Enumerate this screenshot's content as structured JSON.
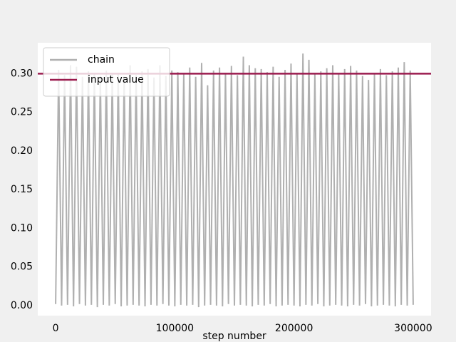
{
  "chart_data": {
    "type": "line",
    "x_label": "step number",
    "x": [
      0,
      2500,
      5000,
      7500,
      10000,
      12500,
      15000,
      17500,
      20000,
      22500,
      25000,
      27500,
      30000,
      32500,
      35000,
      37500,
      40000,
      42500,
      45000,
      47500,
      50000,
      52500,
      55000,
      57500,
      60000,
      62500,
      65000,
      67500,
      70000,
      72500,
      75000,
      77500,
      80000,
      82500,
      85000,
      87500,
      90000,
      92500,
      95000,
      97500,
      100000,
      102500,
      105000,
      107500,
      110000,
      112500,
      115000,
      117500,
      120000,
      122500,
      125000,
      127500,
      130000,
      132500,
      135000,
      137500,
      140000,
      142500,
      145000,
      147500,
      150000,
      152500,
      155000,
      157500,
      160000,
      162500,
      165000,
      167500,
      170000,
      172500,
      175000,
      177500,
      180000,
      182500,
      185000,
      187500,
      190000,
      192500,
      195000,
      197500,
      200000,
      202500,
      205000,
      207500,
      210000,
      212500,
      215000,
      217500,
      220000,
      222500,
      225000,
      227500,
      230000,
      232500,
      235000,
      237500,
      240000,
      242500,
      245000,
      247500,
      250000,
      252500,
      255000,
      257500,
      260000,
      262500,
      265000,
      267500,
      270000,
      272500,
      275000,
      277500,
      280000,
      282500,
      285000,
      287500,
      290000,
      292500,
      295000,
      297500,
      300000
    ],
    "series": [
      {
        "name": "chain",
        "color": "#b0b0b0",
        "values": [
          0.002,
          0.305,
          0.0,
          0.298,
          0.001,
          0.311,
          -0.001,
          0.309,
          0.002,
          0.296,
          0.0,
          0.303,
          0.001,
          0.3,
          -0.002,
          0.297,
          0.001,
          0.304,
          0.0,
          0.299,
          0.002,
          0.301,
          -0.001,
          0.296,
          0.0,
          0.311,
          0.001,
          0.298,
          0.0,
          0.303,
          -0.001,
          0.306,
          0.001,
          0.295,
          0.0,
          0.311,
          0.002,
          0.297,
          0.0,
          0.304,
          -0.001,
          0.302,
          0.001,
          0.299,
          0.0,
          0.308,
          0.001,
          0.296,
          -0.002,
          0.314,
          0.0,
          0.285,
          0.001,
          0.304,
          0.0,
          0.308,
          -0.001,
          0.301,
          0.002,
          0.31,
          0.0,
          0.298,
          0.001,
          0.322,
          0.0,
          0.311,
          -0.001,
          0.307,
          0.001,
          0.306,
          0.0,
          0.302,
          0.002,
          0.309,
          -0.001,
          0.296,
          0.0,
          0.305,
          0.001,
          0.313,
          0.0,
          0.299,
          -0.001,
          0.326,
          0.001,
          0.318,
          0.0,
          0.3,
          0.002,
          0.303,
          -0.001,
          0.307,
          0.0,
          0.311,
          0.001,
          0.3,
          0.0,
          0.306,
          -0.001,
          0.31,
          0.001,
          0.304,
          0.0,
          0.297,
          0.002,
          0.292,
          -0.001,
          0.299,
          0.0,
          0.306,
          0.001,
          0.298,
          0.0,
          0.303,
          -0.001,
          0.308,
          0.001,
          0.315,
          0.0,
          0.304,
          0.001
        ]
      }
    ],
    "hline": {
      "name": "input value",
      "value": 0.3,
      "color": "#9b1b4e"
    },
    "xlim": [
      -15000,
      315000
    ],
    "xticks": [
      0,
      100000,
      200000,
      300000
    ],
    "ylim": [
      -0.013,
      0.34
    ],
    "yticks": [
      {
        "value": 0,
        "label": "0.00"
      },
      0.05,
      {
        "value": 0.1,
        "label": "0.10"
      },
      0.15,
      {
        "value": 0.2,
        "label": "0.20"
      },
      0.25,
      {
        "value": 0.3,
        "label": "0.30"
      }
    ],
    "legend": "upper left",
    "grid": false
  }
}
